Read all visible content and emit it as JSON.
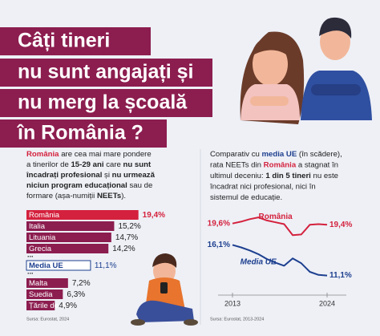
{
  "title_lines": [
    "Câți tineri",
    "nu sunt angajați și",
    "nu merg la școală",
    "în România ?"
  ],
  "left_text": [
    [
      {
        "text": "România",
        "bold": true,
        "color": "#d4213d"
      },
      {
        "text": " are cea mai mare pondere"
      }
    ],
    [
      {
        "text": "a tinerilor de "
      },
      {
        "text": "15-29 ani",
        "bold": true
      },
      {
        "text": " care "
      },
      {
        "text": "nu sunt",
        "bold": true
      }
    ],
    [
      {
        "text": "încadrați profesional",
        "bold": true
      },
      {
        "text": " și "
      },
      {
        "text": "nu urmează",
        "bold": true
      }
    ],
    [
      {
        "text": "niciun program educațional",
        "bold": true
      },
      {
        "text": " sau de"
      }
    ],
    [
      {
        "text": "formare (așa-numiții "
      },
      {
        "text": "NEETs",
        "bold": true
      },
      {
        "text": ")."
      }
    ]
  ],
  "right_text": [
    [
      {
        "text": "Comparativ cu "
      },
      {
        "text": "media UE",
        "bold": true,
        "color": "#1d3f8f"
      },
      {
        "text": " (în scădere),"
      }
    ],
    [
      {
        "text": "rata NEETs din "
      },
      {
        "text": "România",
        "bold": true,
        "color": "#d4213d"
      },
      {
        "text": " a stagnat în"
      }
    ],
    [
      {
        "text": "ultimul deceniu: "
      },
      {
        "text": "1 din 5 tineri",
        "bold": true
      },
      {
        "text": " nu este"
      }
    ],
    [
      {
        "text": "încadrat nici profesional, nici în"
      }
    ],
    [
      {
        "text": "sistemul de educație."
      }
    ]
  ],
  "chart_data": [
    {
      "type": "hbar",
      "categories": [
        "România",
        "Italia",
        "Lituania",
        "Grecia",
        "...",
        "Media UE",
        "...",
        "Malta",
        "Suedia",
        "Țările de Jos"
      ],
      "values": [
        19.4,
        15.2,
        14.7,
        14.2,
        null,
        11.1,
        null,
        7.2,
        6.3,
        4.9
      ],
      "value_labels": [
        "19,4%",
        "15,2%",
        "14,7%",
        "14,2%",
        null,
        "11,1%",
        null,
        "7,2%",
        "6,3%",
        "4,9%"
      ],
      "colors": [
        "#d4213d",
        "#8c1d4f",
        "#8c1d4f",
        "#8c1d4f",
        null,
        "#ffffff",
        null,
        "#8c1d4f",
        "#8c1d4f",
        "#8c1d4f"
      ],
      "value_label_colors": [
        "#d4213d",
        "#222222",
        "#222222",
        "#222222",
        null,
        "#1d3f8f",
        null,
        "#222222",
        "#222222",
        "#222222"
      ],
      "source": "Sursa: Eurostat, 2024"
    },
    {
      "type": "line",
      "x": [
        2013,
        2014,
        2015,
        2016,
        2017,
        2018,
        2019,
        2020,
        2021,
        2022,
        2023,
        2024
      ],
      "series": [
        {
          "name": "România",
          "color": "#d4213d",
          "values": [
            19.6,
            19.9,
            20.3,
            20.6,
            20.1,
            19.8,
            19.5,
            17.7,
            17.8,
            19.4,
            19.5,
            19.4
          ],
          "start_label": "19,6%",
          "end_label": "19,4%"
        },
        {
          "name": "Media UE",
          "color": "#1d3f8f",
          "values": [
            16.1,
            15.7,
            15.2,
            14.6,
            13.8,
            13.2,
            12.7,
            13.9,
            13.1,
            11.7,
            11.2,
            11.1
          ],
          "start_label": "16,1%",
          "end_label": "11,1%"
        }
      ],
      "xlim": [
        2013,
        2024
      ],
      "xticks": [
        2013,
        2024
      ],
      "ylim": [
        10,
        21
      ],
      "source": "Sursa: Eurostat, 2013-2024"
    }
  ]
}
